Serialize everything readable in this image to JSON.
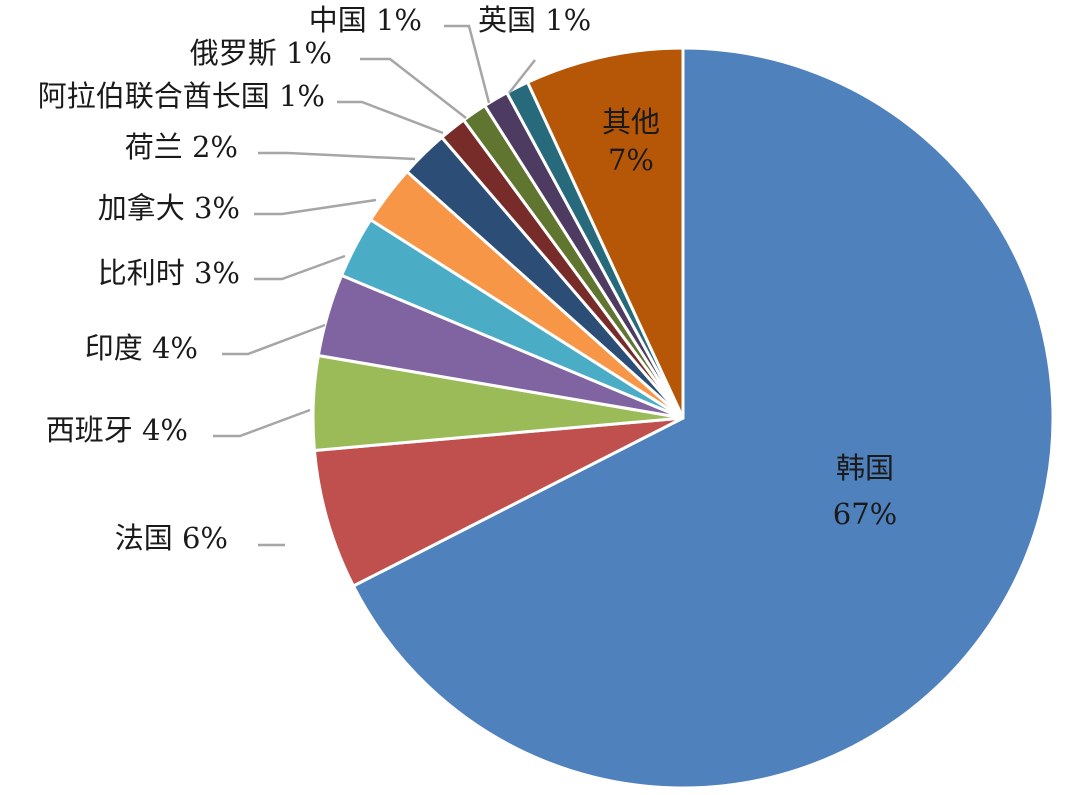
{
  "chart_data": {
    "type": "pie",
    "start_angle_deg": 0,
    "direction": "clockwise",
    "slices": [
      {
        "label": "韩国",
        "pct_label": "67%",
        "value": 67.5,
        "color": "#4F81BD",
        "label_style": "inside"
      },
      {
        "label": "法国",
        "pct_label": "6%",
        "value": 6.1,
        "color": "#C0504D",
        "label_style": "outside"
      },
      {
        "label": "西班牙",
        "pct_label": "4%",
        "value": 4.1,
        "color": "#9BBB59",
        "label_style": "outside"
      },
      {
        "label": "印度",
        "pct_label": "4%",
        "value": 3.6,
        "color": "#8064A2",
        "label_style": "outside"
      },
      {
        "label": "比利时",
        "pct_label": "3%",
        "value": 2.7,
        "color": "#4BACC6",
        "label_style": "outside"
      },
      {
        "label": "加拿大",
        "pct_label": "3%",
        "value": 2.6,
        "color": "#F79646",
        "label_style": "outside"
      },
      {
        "label": "荷兰",
        "pct_label": "2%",
        "value": 2.1,
        "color": "#2C4D75",
        "label_style": "outside"
      },
      {
        "label": "阿拉伯联合酋长国",
        "pct_label": "1%",
        "value": 1.2,
        "color": "#772C2A",
        "label_style": "outside"
      },
      {
        "label": "俄罗斯",
        "pct_label": "1%",
        "value": 1.1,
        "color": "#5F7530",
        "label_style": "outside"
      },
      {
        "label": "中国",
        "pct_label": "1%",
        "value": 1.1,
        "color": "#4D3B62",
        "label_style": "outside"
      },
      {
        "label": "英国",
        "pct_label": "1%",
        "value": 1.0,
        "color": "#276A7C",
        "label_style": "outside"
      },
      {
        "label": "其他",
        "pct_label": "7%",
        "value": 6.9,
        "color": "#B65708",
        "label_style": "inside"
      }
    ]
  }
}
